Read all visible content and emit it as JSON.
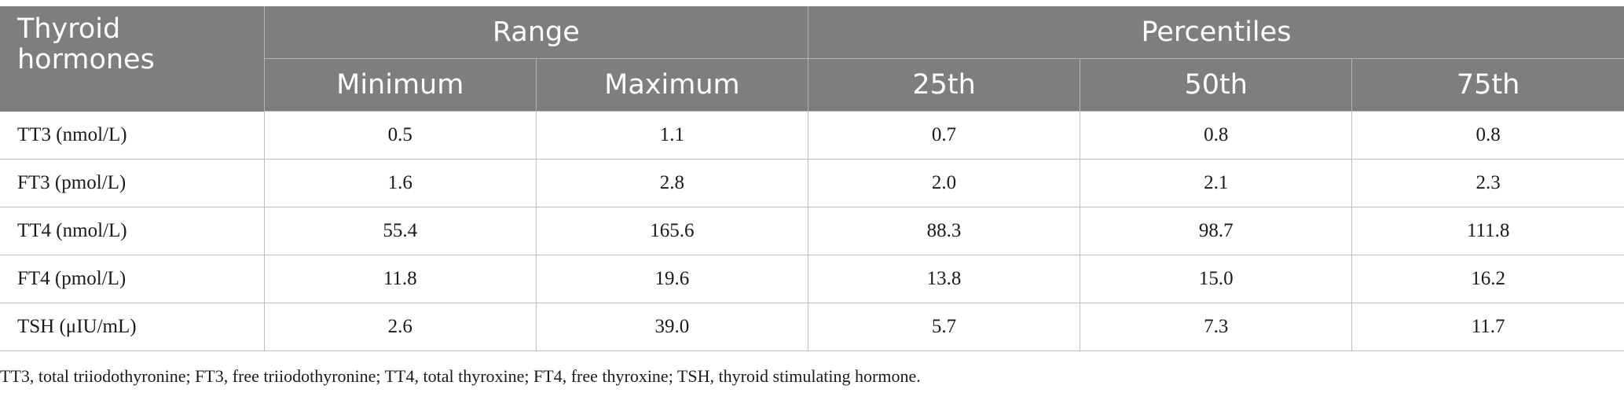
{
  "table": {
    "header": {
      "corner": "Thyroid hormones",
      "groups": [
        {
          "label": "Range"
        },
        {
          "label": "Percentiles"
        }
      ],
      "columns": [
        "Minimum",
        "Maximum",
        "25th",
        "50th",
        "75th"
      ]
    },
    "rows": [
      {
        "label": "TT3 (nmol/L)",
        "values": [
          "0.5",
          "1.1",
          "0.7",
          "0.8",
          "0.8"
        ]
      },
      {
        "label": "FT3 (pmol/L)",
        "values": [
          "1.6",
          "2.8",
          "2.0",
          "2.1",
          "2.3"
        ]
      },
      {
        "label": "TT4 (nmol/L)",
        "values": [
          "55.4",
          "165.6",
          "88.3",
          "98.7",
          "111.8"
        ]
      },
      {
        "label": "FT4 (pmol/L)",
        "values": [
          "11.8",
          "19.6",
          "13.8",
          "15.0",
          "16.2"
        ]
      },
      {
        "label": "TSH (μIU/mL)",
        "values": [
          "2.6",
          "39.0",
          "5.7",
          "7.3",
          "11.7"
        ]
      }
    ]
  },
  "footnote": "TT3, total triiodothyronine; FT3, free triiodothyronine; TT4, total thyroxine; FT4, free thyroxine; TSH, thyroid stimulating hormone.",
  "colors": {
    "header_bg": "#7d7f7c",
    "header_text": "#ffffff",
    "grid": "#bfbfbf"
  }
}
